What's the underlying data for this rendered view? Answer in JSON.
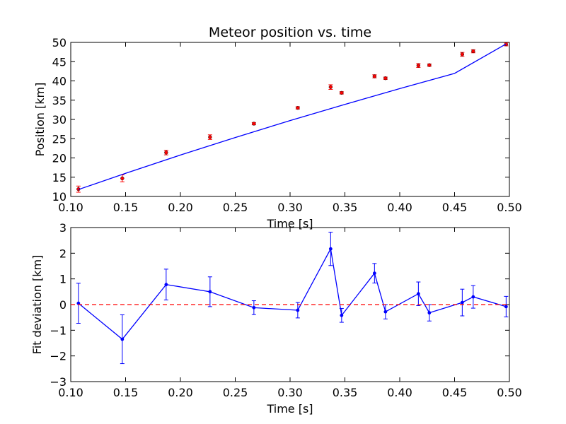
{
  "chart_data": [
    {
      "type": "scatter",
      "title": "Meteor position vs. time",
      "xlabel": "Time [s]",
      "ylabel": "Position [km]",
      "xlim": [
        0.1,
        0.5
      ],
      "ylim": [
        10,
        50
      ],
      "xticks": [
        "0.10",
        "0.15",
        "0.20",
        "0.25",
        "0.30",
        "0.35",
        "0.40",
        "0.45",
        "0.50"
      ],
      "yticks": [
        "10",
        "15",
        "20",
        "25",
        "30",
        "35",
        "40",
        "45",
        "50"
      ],
      "grid": false,
      "series": [
        {
          "kind": "points-with-errorbars",
          "color": "#ff0000",
          "x": [
            0.107,
            0.147,
            0.187,
            0.227,
            0.267,
            0.307,
            0.337,
            0.347,
            0.377,
            0.387,
            0.417,
            0.427,
            0.457,
            0.467,
            0.497
          ],
          "y": [
            11.9,
            14.7,
            21.4,
            25.4,
            28.9,
            33.0,
            38.4,
            36.9,
            41.2,
            40.7,
            44.0,
            44.1,
            46.9,
            47.7,
            49.5
          ],
          "err": [
            0.8,
            0.9,
            0.6,
            0.6,
            0.3,
            0.3,
            0.6,
            0.3,
            0.4,
            0.3,
            0.5,
            0.3,
            0.5,
            0.4,
            0.4
          ]
        },
        {
          "kind": "fit-line",
          "color": "#0000ff",
          "x": [
            0.107,
            0.15,
            0.2,
            0.25,
            0.3,
            0.35,
            0.4,
            0.45,
            0.497
          ],
          "y": [
            11.8,
            16.0,
            20.75,
            25.3,
            29.7,
            33.9,
            38.0,
            41.95,
            49.6
          ]
        }
      ]
    },
    {
      "type": "line",
      "title": "",
      "xlabel": "Time [s]",
      "ylabel": "Fit deviation [km]",
      "xlim": [
        0.1,
        0.5
      ],
      "ylim": [
        -3,
        3
      ],
      "xticks": [
        "0.10",
        "0.15",
        "0.20",
        "0.25",
        "0.30",
        "0.35",
        "0.40",
        "0.45",
        "0.50"
      ],
      "yticks": [
        "−3",
        "−2",
        "−1",
        "0",
        "1",
        "2",
        "3"
      ],
      "grid": false,
      "series": [
        {
          "kind": "line-with-errorbars",
          "color": "#0000ff",
          "x": [
            0.107,
            0.147,
            0.187,
            0.227,
            0.267,
            0.307,
            0.337,
            0.347,
            0.377,
            0.387,
            0.417,
            0.427,
            0.457,
            0.467,
            0.497
          ],
          "y": [
            0.05,
            -1.35,
            0.78,
            0.5,
            -0.12,
            -0.22,
            2.17,
            -0.42,
            1.22,
            -0.28,
            0.42,
            -0.32,
            0.08,
            0.3,
            -0.08
          ],
          "err": [
            0.78,
            0.95,
            0.6,
            0.58,
            0.27,
            0.3,
            0.65,
            0.27,
            0.38,
            0.28,
            0.46,
            0.32,
            0.52,
            0.44,
            0.4
          ]
        },
        {
          "kind": "reference-line",
          "color": "#ff0000",
          "dashed": true,
          "y": 0
        }
      ]
    }
  ]
}
